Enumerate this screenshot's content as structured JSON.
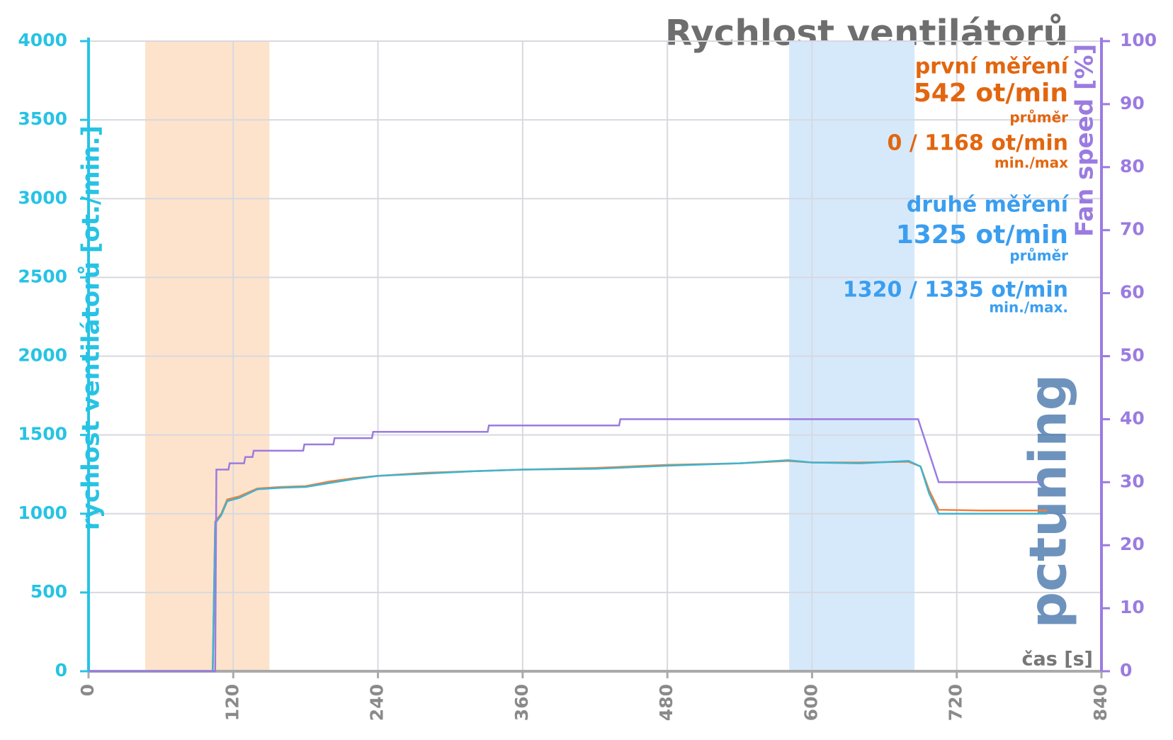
{
  "chart_data": {
    "type": "line",
    "title": "Rychlost ventilátorů",
    "ylabel": "rychlost ventilátorů [ot./min.]",
    "y2label": "Fan speed [%]",
    "xlabel": "čas [s]",
    "watermark": "pctuning",
    "xlim": [
      0,
      840
    ],
    "xticks": [
      0,
      120,
      240,
      360,
      480,
      600,
      720,
      840
    ],
    "ylim": [
      0,
      4000
    ],
    "yticks": [
      0,
      500,
      1000,
      1500,
      2000,
      2500,
      3000,
      3500,
      4000
    ],
    "y2lim": [
      0,
      100
    ],
    "y2ticks": [
      0,
      10,
      20,
      30,
      40,
      50,
      60,
      70,
      80,
      90,
      100
    ],
    "grid": true,
    "bands": [
      {
        "from": 47,
        "to": 150,
        "color": "#fde3cc"
      },
      {
        "from": 581,
        "to": 685,
        "color": "#d6e9fb"
      }
    ],
    "series": [
      {
        "name": "první měření",
        "color": "#f0803c",
        "x": [
          0,
          103,
          105,
          110,
          115,
          125,
          140,
          160,
          180,
          200,
          220,
          240,
          280,
          320,
          360,
          420,
          480,
          540,
          580,
          600,
          640,
          680,
          690,
          697,
          705,
          740,
          795
        ],
        "values": [
          0,
          0,
          950,
          1000,
          1090,
          1110,
          1160,
          1170,
          1175,
          1205,
          1225,
          1240,
          1260,
          1270,
          1280,
          1290,
          1310,
          1320,
          1335,
          1325,
          1325,
          1330,
          1300,
          1150,
          1025,
          1020,
          1020
        ]
      },
      {
        "name": "druhé měření",
        "color": "#3fb4cf",
        "x": [
          0,
          103,
          105,
          110,
          115,
          125,
          140,
          160,
          180,
          200,
          220,
          240,
          280,
          320,
          360,
          420,
          480,
          540,
          580,
          600,
          640,
          680,
          690,
          697,
          705,
          740,
          795
        ],
        "values": [
          0,
          0,
          940,
          990,
          1080,
          1100,
          1155,
          1165,
          1170,
          1195,
          1220,
          1240,
          1255,
          1270,
          1280,
          1285,
          1305,
          1320,
          1340,
          1325,
          1320,
          1335,
          1300,
          1130,
          1000,
          1000,
          1000
        ]
      },
      {
        "name": "Fan speed",
        "color": "#9b7be0",
        "axis": "y2",
        "x": [
          0,
          105,
          106,
          116,
          117,
          129,
          130,
          136,
          137,
          178,
          179,
          203,
          204,
          235,
          236,
          331,
          332,
          440,
          441,
          688,
          705,
          790
        ],
        "values": [
          0,
          0,
          32,
          32,
          33,
          33,
          34,
          34,
          35,
          35,
          36,
          36,
          37,
          37,
          38,
          38,
          39,
          39,
          40,
          40,
          30,
          30
        ]
      }
    ],
    "annotations": [
      {
        "text": "první měření",
        "color": "#e2660f"
      },
      {
        "text": "542 ot/min",
        "color": "#e2660f"
      },
      {
        "text": "průměr",
        "color": "#e2660f"
      },
      {
        "text": "0 / 1168 ot/min",
        "color": "#e2660f"
      },
      {
        "text": "min./max",
        "color": "#e2660f"
      },
      {
        "text": "druhé měření",
        "color": "#3a9ef0"
      },
      {
        "text": "1325 ot/min",
        "color": "#3a9ef0"
      },
      {
        "text": "průměr",
        "color": "#3a9ef0"
      },
      {
        "text": "1320 / 1335 ot/min",
        "color": "#3a9ef0"
      },
      {
        "text": "min./max.",
        "color": "#3a9ef0"
      }
    ]
  }
}
